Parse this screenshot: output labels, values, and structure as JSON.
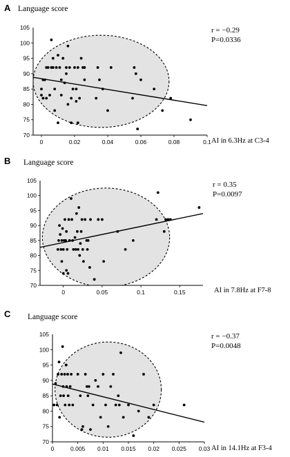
{
  "chart_data": [
    {
      "type": "scatter",
      "panel_label": "A",
      "ylabel": "Language score",
      "xlabel": "AI in 6.3Hz at C3-4",
      "r_text": "r = −0.29",
      "p_text": "P=0.0336",
      "xlim": [
        -0.005,
        0.1
      ],
      "ylim": [
        70,
        105
      ],
      "xticks": [
        0,
        0.02,
        0.04,
        0.06,
        0.08,
        0.1
      ],
      "xtick_labels": [
        "0",
        "0.02",
        "0.04",
        "0.06",
        "0.08",
        "0.1"
      ],
      "yticks": [
        70,
        75,
        80,
        85,
        90,
        95,
        100
      ],
      "regression": {
        "x": [
          -0.005,
          0.1
        ],
        "y": [
          88.8,
          79.6
        ]
      },
      "ellipse": {
        "cx": 0.036,
        "cy": 87.5,
        "rx": 0.041,
        "ry": 15,
        "angle_deg": 0
      },
      "points": [
        [
          0.0,
          85
        ],
        [
          0.0,
          83
        ],
        [
          0.001,
          82
        ],
        [
          0.001,
          88
        ],
        [
          0.001,
          82
        ],
        [
          0.002,
          88
        ],
        [
          0.003,
          92
        ],
        [
          0.003,
          82
        ],
        [
          0.004,
          92
        ],
        [
          0.005,
          83
        ],
        [
          0.006,
          92
        ],
        [
          0.006,
          101
        ],
        [
          0.007,
          92
        ],
        [
          0.007,
          95
        ],
        [
          0.008,
          78
        ],
        [
          0.008,
          85
        ],
        [
          0.009,
          92
        ],
        [
          0.01,
          96
        ],
        [
          0.01,
          74
        ],
        [
          0.011,
          92
        ],
        [
          0.012,
          88
        ],
        [
          0.012,
          83
        ],
        [
          0.013,
          95
        ],
        [
          0.014,
          87
        ],
        [
          0.015,
          92
        ],
        [
          0.015,
          90
        ],
        [
          0.016,
          99
        ],
        [
          0.016,
          80
        ],
        [
          0.017,
          92
        ],
        [
          0.018,
          82
        ],
        [
          0.018,
          74
        ],
        [
          0.019,
          85
        ],
        [
          0.02,
          92
        ],
        [
          0.021,
          85
        ],
        [
          0.021,
          81
        ],
        [
          0.022,
          92
        ],
        [
          0.022,
          74
        ],
        [
          0.023,
          82
        ],
        [
          0.024,
          95
        ],
        [
          0.025,
          92
        ],
        [
          0.026,
          92
        ],
        [
          0.026,
          88
        ],
        [
          0.033,
          82
        ],
        [
          0.034,
          92
        ],
        [
          0.035,
          88
        ],
        [
          0.037,
          85
        ],
        [
          0.04,
          78
        ],
        [
          0.042,
          92
        ],
        [
          0.055,
          82
        ],
        [
          0.056,
          92
        ],
        [
          0.057,
          90
        ],
        [
          0.058,
          72
        ],
        [
          0.06,
          88
        ],
        [
          0.068,
          85
        ],
        [
          0.073,
          78
        ],
        [
          0.078,
          82
        ],
        [
          0.09,
          75
        ]
      ]
    },
    {
      "type": "scatter",
      "panel_label": "B",
      "ylabel": "Language score",
      "xlabel": "AI in 7.8Hz at F7-8",
      "r_text": "r = 0.35",
      "p_text": "P=0.0097",
      "xlim": [
        -0.03,
        0.18
      ],
      "ylim": [
        70,
        105
      ],
      "xticks": [
        0,
        0.05,
        0.1,
        0.15
      ],
      "xtick_labels": [
        "0",
        "0.05",
        "0.1",
        "0.15"
      ],
      "yticks": [
        70,
        75,
        80,
        85,
        90,
        95,
        100
      ],
      "regression": {
        "x": [
          -0.03,
          0.18
        ],
        "y": [
          82.7,
          94.0
        ]
      },
      "ellipse": {
        "cx": 0.055,
        "cy": 86,
        "rx": 0.082,
        "ry": 16.5,
        "angle_deg": 0
      },
      "points": [
        [
          -0.007,
          82
        ],
        [
          -0.006,
          85
        ],
        [
          -0.005,
          90
        ],
        [
          -0.004,
          87
        ],
        [
          -0.003,
          82
        ],
        [
          -0.002,
          78
        ],
        [
          -0.002,
          85
        ],
        [
          -0.001,
          89
        ],
        [
          0.0,
          74
        ],
        [
          0.0,
          82
        ],
        [
          0.001,
          85
        ],
        [
          0.002,
          92
        ],
        [
          0.003,
          85
        ],
        [
          0.004,
          75
        ],
        [
          0.004,
          88
        ],
        [
          0.005,
          82
        ],
        [
          0.006,
          74
        ],
        [
          0.007,
          92
        ],
        [
          0.008,
          85
        ],
        [
          0.01,
          99
        ],
        [
          0.011,
          92
        ],
        [
          0.012,
          85
        ],
        [
          0.013,
          82
        ],
        [
          0.015,
          86
        ],
        [
          0.016,
          82
        ],
        [
          0.017,
          94
        ],
        [
          0.018,
          88
        ],
        [
          0.019,
          82
        ],
        [
          0.02,
          96
        ],
        [
          0.021,
          80
        ],
        [
          0.022,
          84
        ],
        [
          0.023,
          88
        ],
        [
          0.024,
          92
        ],
        [
          0.025,
          82
        ],
        [
          0.026,
          78
        ],
        [
          0.028,
          92
        ],
        [
          0.03,
          85
        ],
        [
          0.031,
          82
        ],
        [
          0.032,
          85
        ],
        [
          0.034,
          76
        ],
        [
          0.035,
          92
        ],
        [
          0.04,
          72
        ],
        [
          0.045,
          92
        ],
        [
          0.05,
          92
        ],
        [
          0.052,
          78
        ],
        [
          0.07,
          88
        ],
        [
          0.08,
          82
        ],
        [
          0.09,
          85
        ],
        [
          0.12,
          92
        ],
        [
          0.122,
          101
        ],
        [
          0.13,
          88
        ],
        [
          0.132,
          92
        ],
        [
          0.135,
          92
        ],
        [
          0.138,
          92
        ],
        [
          0.175,
          96
        ]
      ]
    },
    {
      "type": "scatter",
      "panel_label": "C",
      "ylabel": "Language score",
      "xlabel": "AI in 14.1Hz at F3-4",
      "r_text": "r = −0.37",
      "p_text": "P=0.0048",
      "xlim": [
        0,
        0.03
      ],
      "ylim": [
        70,
        105
      ],
      "xticks": [
        0,
        0.005,
        0.01,
        0.015,
        0.02,
        0.025,
        0.03
      ],
      "xtick_labels": [
        "0",
        "0.005",
        "0.01",
        "0.015",
        "0.02",
        "0.025",
        "0.03"
      ],
      "yticks": [
        70,
        75,
        80,
        85,
        90,
        95,
        100
      ],
      "regression": {
        "x": [
          0,
          0.03
        ],
        "y": [
          88.8,
          76.4
        ]
      },
      "ellipse": {
        "cx": 0.011,
        "cy": 87,
        "rx": 0.0105,
        "ry": 15.5,
        "angle_deg": 0
      },
      "points": [
        [
          0.0003,
          82
        ],
        [
          0.0006,
          89
        ],
        [
          0.0009,
          82
        ],
        [
          0.0011,
          92
        ],
        [
          0.0013,
          96
        ],
        [
          0.0014,
          78
        ],
        [
          0.0016,
          85
        ],
        [
          0.0018,
          92
        ],
        [
          0.002,
          101
        ],
        [
          0.0021,
          88
        ],
        [
          0.0022,
          85
        ],
        [
          0.0024,
          92
        ],
        [
          0.0025,
          82
        ],
        [
          0.0027,
          95
        ],
        [
          0.0028,
          88
        ],
        [
          0.003,
          92
        ],
        [
          0.0031,
          85
        ],
        [
          0.0033,
          82
        ],
        [
          0.0035,
          88
        ],
        [
          0.0037,
          92
        ],
        [
          0.004,
          82
        ],
        [
          0.005,
          92
        ],
        [
          0.0055,
          85
        ],
        [
          0.0058,
          74
        ],
        [
          0.006,
          75
        ],
        [
          0.0065,
          92
        ],
        [
          0.0068,
          88
        ],
        [
          0.007,
          85
        ],
        [
          0.0072,
          88
        ],
        [
          0.0075,
          74
        ],
        [
          0.008,
          82
        ],
        [
          0.0085,
          90
        ],
        [
          0.009,
          88
        ],
        [
          0.0095,
          78
        ],
        [
          0.01,
          92
        ],
        [
          0.0105,
          82
        ],
        [
          0.011,
          75
        ],
        [
          0.0115,
          88
        ],
        [
          0.012,
          92
        ],
        [
          0.0125,
          82
        ],
        [
          0.013,
          85
        ],
        [
          0.0132,
          82
        ],
        [
          0.0135,
          99
        ],
        [
          0.014,
          78
        ],
        [
          0.015,
          82
        ],
        [
          0.016,
          72
        ],
        [
          0.017,
          80
        ],
        [
          0.018,
          92
        ],
        [
          0.019,
          78
        ],
        [
          0.02,
          82
        ],
        [
          0.026,
          82
        ]
      ]
    }
  ]
}
